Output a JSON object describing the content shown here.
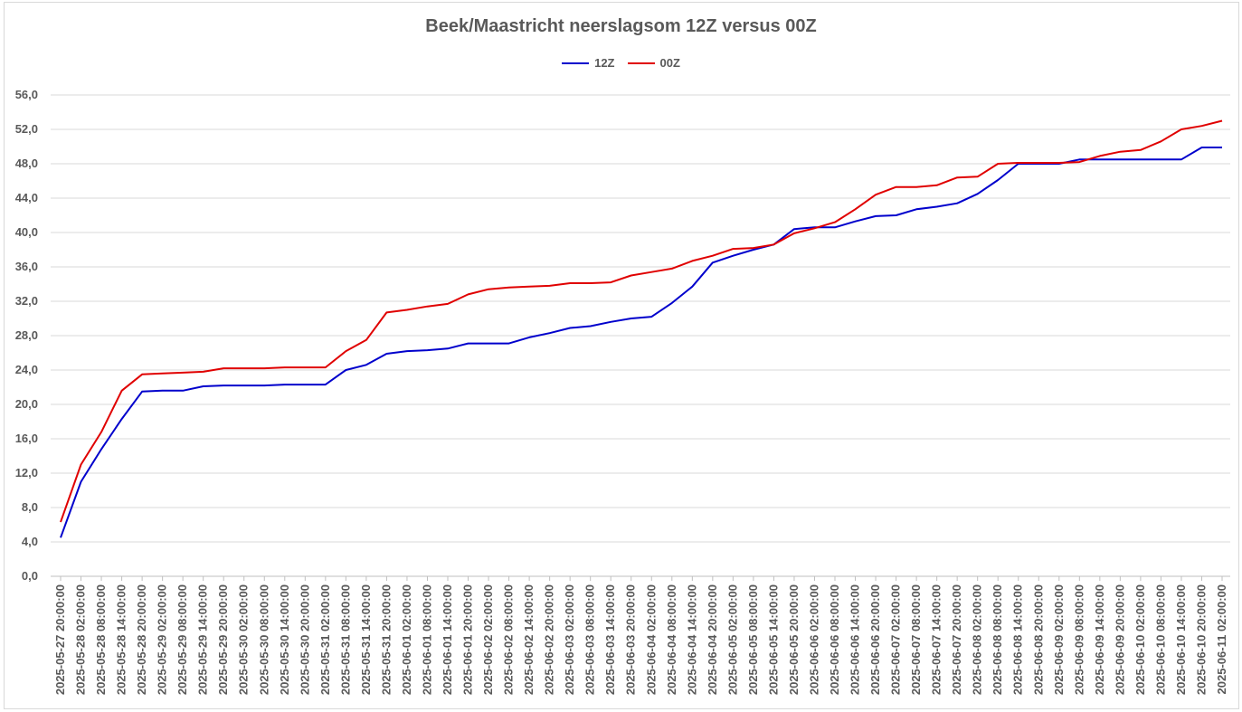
{
  "chart_data": {
    "type": "line",
    "title": "Beek/Maastricht neerslagsom 12Z versus 00Z",
    "xlabel": "",
    "ylabel": "",
    "ylim": [
      0,
      56
    ],
    "y_ticks": [
      "0,0",
      "4,0",
      "8,0",
      "12,0",
      "16,0",
      "20,0",
      "24,0",
      "28,0",
      "32,0",
      "36,0",
      "40,0",
      "44,0",
      "48,0",
      "52,0",
      "56,0"
    ],
    "grid": true,
    "legend_position": "top",
    "x": [
      "2025-05-27 20:00:00",
      "2025-05-28 02:00:00",
      "2025-05-28 08:00:00",
      "2025-05-28 14:00:00",
      "2025-05-28 20:00:00",
      "2025-05-29 02:00:00",
      "2025-05-29 08:00:00",
      "2025-05-29 14:00:00",
      "2025-05-29 20:00:00",
      "2025-05-30 02:00:00",
      "2025-05-30 08:00:00",
      "2025-05-30 14:00:00",
      "2025-05-30 20:00:00",
      "2025-05-31 02:00:00",
      "2025-05-31 08:00:00",
      "2025-05-31 14:00:00",
      "2025-05-31 20:00:00",
      "2025-06-01 02:00:00",
      "2025-06-01 08:00:00",
      "2025-06-01 14:00:00",
      "2025-06-01 20:00:00",
      "2025-06-02 02:00:00",
      "2025-06-02 08:00:00",
      "2025-06-02 14:00:00",
      "2025-06-02 20:00:00",
      "2025-06-03 02:00:00",
      "2025-06-03 08:00:00",
      "2025-06-03 14:00:00",
      "2025-06-03 20:00:00",
      "2025-06-04 02:00:00",
      "2025-06-04 08:00:00",
      "2025-06-04 14:00:00",
      "2025-06-04 20:00:00",
      "2025-06-05 02:00:00",
      "2025-06-05 08:00:00",
      "2025-06-05 14:00:00",
      "2025-06-05 20:00:00",
      "2025-06-06 02:00:00",
      "2025-06-06 08:00:00",
      "2025-06-06 14:00:00",
      "2025-06-06 20:00:00",
      "2025-06-07 02:00:00",
      "2025-06-07 08:00:00",
      "2025-06-07 14:00:00",
      "2025-06-07 20:00:00",
      "2025-06-08 02:00:00",
      "2025-06-08 08:00:00",
      "2025-06-08 14:00:00",
      "2025-06-08 20:00:00",
      "2025-06-09 02:00:00",
      "2025-06-09 08:00:00",
      "2025-06-09 14:00:00",
      "2025-06-09 20:00:00",
      "2025-06-10 02:00:00",
      "2025-06-10 08:00:00",
      "2025-06-10 14:00:00",
      "2025-06-10 20:00:00",
      "2025-06-11 02:00:00"
    ],
    "series": [
      {
        "name": "12Z",
        "color": "#0000cc",
        "values": [
          4.5,
          11.0,
          14.8,
          18.3,
          21.5,
          21.6,
          21.6,
          22.1,
          22.2,
          22.2,
          22.2,
          22.3,
          22.3,
          22.3,
          24.0,
          24.6,
          25.9,
          26.2,
          26.3,
          26.5,
          27.1,
          27.1,
          27.1,
          27.8,
          28.3,
          28.9,
          29.1,
          29.6,
          30.0,
          30.2,
          31.8,
          33.7,
          36.5,
          37.3,
          38.0,
          38.6,
          40.4,
          40.6,
          40.6,
          41.3,
          41.9,
          42.0,
          42.7,
          43.0,
          43.4,
          44.5,
          46.1,
          48.0,
          48.0,
          48.0,
          48.5,
          48.5,
          48.5,
          48.5,
          48.5,
          48.5,
          49.9,
          49.9
        ]
      },
      {
        "name": "00Z",
        "color": "#e00000",
        "values": [
          6.3,
          13.0,
          16.8,
          21.6,
          23.5,
          23.6,
          23.7,
          23.8,
          24.2,
          24.2,
          24.2,
          24.3,
          24.3,
          24.3,
          26.2,
          27.5,
          30.7,
          31.0,
          31.4,
          31.7,
          32.8,
          33.4,
          33.6,
          33.7,
          33.8,
          34.1,
          34.1,
          34.2,
          35.0,
          35.4,
          35.8,
          36.7,
          37.3,
          38.1,
          38.2,
          38.6,
          39.9,
          40.5,
          41.2,
          42.7,
          44.4,
          45.3,
          45.3,
          45.5,
          46.4,
          46.5,
          48.0,
          48.1,
          48.1,
          48.1,
          48.2,
          48.9,
          49.4,
          49.6,
          50.6,
          52.0,
          52.4,
          53.0
        ]
      }
    ]
  },
  "colors": {
    "grid": "#d9d9d9",
    "text": "#595959",
    "axis": "#bfbfbf"
  }
}
